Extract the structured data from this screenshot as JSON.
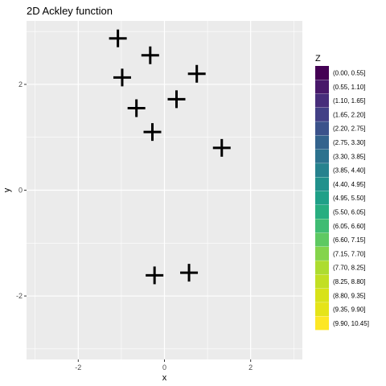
{
  "chart_data": {
    "type": "scatter",
    "title": "2D Ackley function",
    "xlabel": "x",
    "ylabel": "y",
    "xlim": [
      -3.2,
      3.2
    ],
    "ylim": [
      -3.2,
      3.2
    ],
    "x_ticks": [
      {
        "value": -2,
        "label": "-2"
      },
      {
        "value": 0,
        "label": "0"
      },
      {
        "value": 2,
        "label": "2"
      }
    ],
    "y_ticks": [
      {
        "value": -2,
        "label": "-2"
      },
      {
        "value": 0,
        "label": "0"
      },
      {
        "value": 2,
        "label": "2"
      }
    ],
    "grid": true,
    "marker": "plus",
    "marker_color": "#000000",
    "background_color": "#ebebeb",
    "points": [
      {
        "x": -1.08,
        "y": 2.87
      },
      {
        "x": -0.33,
        "y": 2.55
      },
      {
        "x": -0.98,
        "y": 2.13
      },
      {
        "x": 0.75,
        "y": 2.2
      },
      {
        "x": 0.28,
        "y": 1.72
      },
      {
        "x": -0.65,
        "y": 1.55
      },
      {
        "x": -0.28,
        "y": 1.1
      },
      {
        "x": 1.33,
        "y": 0.8
      },
      {
        "x": 0.57,
        "y": -1.56
      },
      {
        "x": -0.23,
        "y": -1.61
      }
    ],
    "legend": {
      "title": "Z",
      "position": "right",
      "entries": [
        {
          "label": "(0.00, 0.55]",
          "color": "#440154"
        },
        {
          "label": "(0.55, 1.10]",
          "color": "#48186a"
        },
        {
          "label": "(1.10, 1.65]",
          "color": "#472d7b"
        },
        {
          "label": "(1.65, 2.20]",
          "color": "#424086"
        },
        {
          "label": "(2.20, 2.75]",
          "color": "#3b528b"
        },
        {
          "label": "(2.75, 3.30]",
          "color": "#33638d"
        },
        {
          "label": "(3.30, 3.85]",
          "color": "#2c728e"
        },
        {
          "label": "(3.85, 4.40]",
          "color": "#26828e"
        },
        {
          "label": "(4.40, 4.95]",
          "color": "#21918c"
        },
        {
          "label": "(4.95, 5.50]",
          "color": "#1fa088"
        },
        {
          "label": "(5.50, 6.05]",
          "color": "#28ae80"
        },
        {
          "label": "(6.05, 6.60]",
          "color": "#3fbc73"
        },
        {
          "label": "(6.60, 7.15]",
          "color": "#5ec962"
        },
        {
          "label": "(7.15, 7.70]",
          "color": "#84d44b"
        },
        {
          "label": "(7.70, 8.25]",
          "color": "#addc30"
        },
        {
          "label": "(8.25, 8.80]",
          "color": "#c2df23"
        },
        {
          "label": "(8.80, 9.35]",
          "color": "#d8e219"
        },
        {
          "label": "(9.35, 9.90]",
          "color": "#e5e419"
        },
        {
          "label": "(9.90, 10.45]",
          "color": "#fde725"
        }
      ]
    }
  }
}
